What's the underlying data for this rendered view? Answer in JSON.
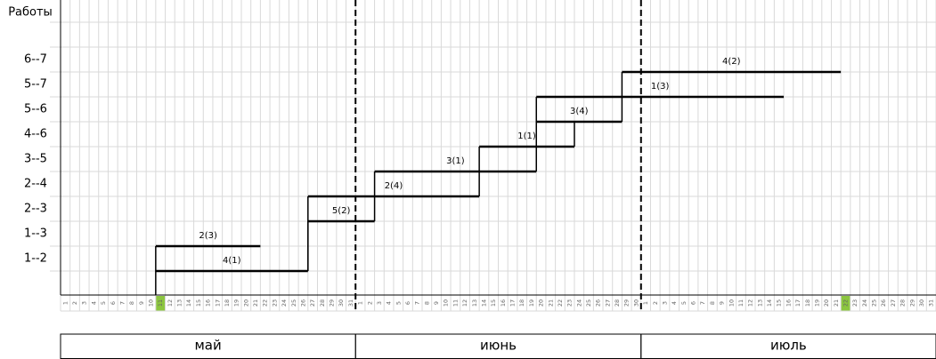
{
  "chart_data": {
    "type": "gantt",
    "y_axis_title": "Работы",
    "rows": [
      "6--7",
      "5--7",
      "5--6",
      "4--6",
      "3--5",
      "2--4",
      "2--3",
      "1--3",
      "1--2"
    ],
    "tasks": [
      {
        "row": "1--2",
        "label": "4(1)",
        "start": 11,
        "end": 27
      },
      {
        "row": "1--3",
        "label": "2(3)",
        "start": 11,
        "end": 22
      },
      {
        "row": "2--3",
        "label": "5(2)",
        "start": 27,
        "end": 34
      },
      {
        "row": "2--4",
        "label": "2(4)",
        "start": 27,
        "end": 45
      },
      {
        "row": "3--5",
        "label": "3(1)",
        "start": 34,
        "end": 51
      },
      {
        "row": "4--6",
        "label": "1(1)",
        "start": 45,
        "end": 55
      },
      {
        "row": "5--6",
        "label": "3(4)",
        "start": 51,
        "end": 60
      },
      {
        "row": "5--7",
        "label": "1(3)",
        "start": 51,
        "end": 77
      },
      {
        "row": "6--7",
        "label": "4(2)",
        "start": 60,
        "end": 83
      }
    ],
    "highlighted_days": [
      11,
      83
    ],
    "months": [
      {
        "name": "май",
        "days": [
          1,
          2,
          3,
          4,
          5,
          6,
          7,
          8,
          9,
          10,
          11,
          12,
          13,
          14,
          15,
          16,
          17,
          18,
          19,
          20,
          21,
          22,
          23,
          24,
          25,
          26,
          27,
          28,
          29,
          30,
          31
        ]
      },
      {
        "name": "июнь",
        "days": [
          1,
          2,
          3,
          4,
          5,
          6,
          7,
          8,
          9,
          10,
          11,
          12,
          13,
          14,
          15,
          16,
          17,
          18,
          19,
          20,
          21,
          22,
          23,
          24,
          25,
          26,
          27,
          28,
          29,
          30
        ]
      },
      {
        "name": "июль",
        "days": [
          1,
          2,
          3,
          4,
          5,
          6,
          7,
          8,
          9,
          10,
          11,
          12,
          13,
          14,
          15,
          16,
          17,
          18,
          19,
          20,
          21,
          22,
          23,
          24,
          25,
          26,
          27,
          28,
          29,
          30,
          31
        ]
      }
    ]
  }
}
